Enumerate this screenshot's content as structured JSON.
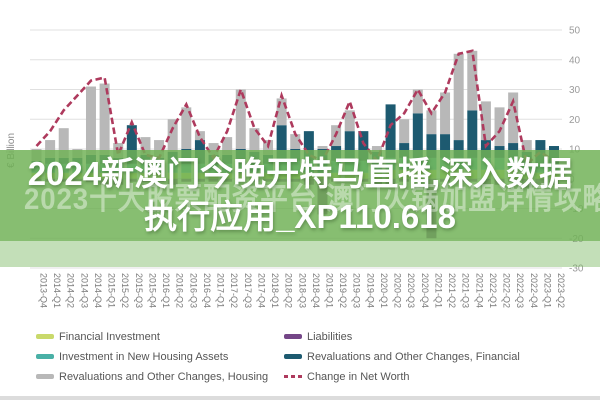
{
  "overlay": {
    "watermark": "2023十大股票配资平台 澳门火锅加盟详情攻略",
    "title_line1": "2024新澳门今晚开特马直播,深入数据",
    "title_line2": "执行应用_XP110.618",
    "band_color": "#70b256",
    "title_color": "#ffffff"
  },
  "chart_data": {
    "type": "bar",
    "stacked": true,
    "title": "",
    "xlabel": "",
    "ylabel": "€ Billion",
    "ylim": [
      -30,
      50
    ],
    "yticks": [
      50,
      40,
      30,
      20,
      10,
      0,
      -10,
      -20,
      -30
    ],
    "grid": true,
    "legend_position": "bottom",
    "categories": [
      "2013-Q4",
      "2014-Q1",
      "2014-Q2",
      "2014-Q3",
      "2014-Q4",
      "2015-Q1",
      "2015-Q2",
      "2015-Q3",
      "2015-Q4",
      "2016-Q1",
      "2016-Q2",
      "2016-Q3",
      "2016-Q4",
      "2017-Q1",
      "2017-Q2",
      "2017-Q3",
      "2017-Q4",
      "2018-Q1",
      "2018-Q2",
      "2018-Q3",
      "2018-Q4",
      "2019-Q1",
      "2019-Q2",
      "2019-Q3",
      "2019-Q4",
      "2020-Q1",
      "2020-Q2",
      "2020-Q3",
      "2020-Q4",
      "2021-Q1",
      "2021-Q2",
      "2021-Q3",
      "2021-Q4",
      "2022-Q1",
      "2022-Q2",
      "2022-Q3",
      "2022-Q4",
      "2023-Q1",
      "2023-Q2"
    ],
    "series": [
      {
        "name": "Financial Investment",
        "color": "#c9d96b",
        "values": [
          2,
          2,
          2,
          2,
          2,
          2,
          2,
          2,
          2,
          2,
          2,
          2,
          2,
          2,
          2,
          2,
          2,
          2,
          2,
          2,
          2,
          2,
          2,
          2,
          2,
          2,
          3,
          3,
          3,
          3,
          3,
          3,
          3,
          3,
          3,
          3,
          2,
          2,
          2
        ]
      },
      {
        "name": "Investment in New Housing Assets",
        "color": "#49b0a6",
        "values": [
          3,
          3,
          3,
          3,
          3,
          3,
          3,
          3,
          3,
          3,
          3,
          3,
          3,
          3,
          3,
          3,
          3,
          3,
          4,
          4,
          4,
          4,
          4,
          4,
          4,
          3,
          4,
          4,
          4,
          4,
          4,
          4,
          4,
          4,
          4,
          4,
          3,
          3,
          3
        ]
      },
      {
        "name": "Liabilities",
        "color": "#744687",
        "values": [
          -1,
          -1,
          -1,
          -1,
          -1,
          -2,
          -2,
          -1,
          -1,
          -1,
          -2,
          -1,
          -1,
          -1,
          -1,
          -1,
          -1,
          -1,
          -1,
          -1,
          -2,
          -12,
          -1,
          -1,
          -1,
          -3,
          -2,
          -1,
          -1,
          -20,
          -1,
          -1,
          -1,
          -2,
          -2,
          -1,
          -3,
          -2,
          -2
        ]
      },
      {
        "name": "Revaluations and Other Changes, Financial",
        "color": "#1d5a70",
        "values": [
          1,
          2,
          2,
          2,
          3,
          3,
          2,
          13,
          3,
          2,
          4,
          5,
          8,
          3,
          3,
          5,
          4,
          3,
          12,
          4,
          10,
          4,
          5,
          10,
          10,
          4,
          18,
          5,
          15,
          8,
          8,
          6,
          16,
          6,
          4,
          5,
          4,
          8,
          6
        ]
      },
      {
        "name": "Revaluations and Other Changes, Housing",
        "color": "#b8b8b8",
        "values": [
          4,
          6,
          10,
          3,
          23,
          24,
          5,
          0,
          6,
          6,
          11,
          14,
          3,
          4,
          6,
          20,
          8,
          5,
          9,
          5,
          0,
          1,
          7,
          7,
          0,
          2,
          0,
          8,
          8,
          8,
          14,
          29,
          20,
          13,
          13,
          17,
          4,
          0,
          0
        ]
      }
    ],
    "line_series": {
      "name": "Change in Net Worth",
      "color": "#ae3a5d",
      "style": "dashed",
      "values": [
        11,
        16,
        23,
        28,
        33,
        34,
        8,
        19,
        8,
        7,
        17,
        25,
        14,
        7,
        16,
        30,
        17,
        11,
        28,
        15,
        8,
        6,
        15,
        26,
        12,
        6,
        18,
        22,
        30,
        22,
        29,
        42,
        43,
        11,
        16,
        26,
        5,
        9,
        6
      ]
    }
  },
  "legend": {
    "columns": [
      [
        {
          "label": "Financial Investment",
          "color": "#c9d96b",
          "swatch": "box"
        },
        {
          "label": "Investment in New Housing Assets",
          "color": "#49b0a6",
          "swatch": "box"
        },
        {
          "label": "Revaluations and Other Changes, Housing",
          "color": "#b8b8b8",
          "swatch": "box"
        }
      ],
      [
        {
          "label": "Liabilities",
          "color": "#744687",
          "swatch": "box"
        },
        {
          "label": "Revaluations and Other Changes, Financial",
          "color": "#1d5a70",
          "swatch": "box"
        },
        {
          "label": "Change in Net Worth",
          "color": "#ae3a5d",
          "swatch": "dashed-line"
        }
      ]
    ]
  }
}
